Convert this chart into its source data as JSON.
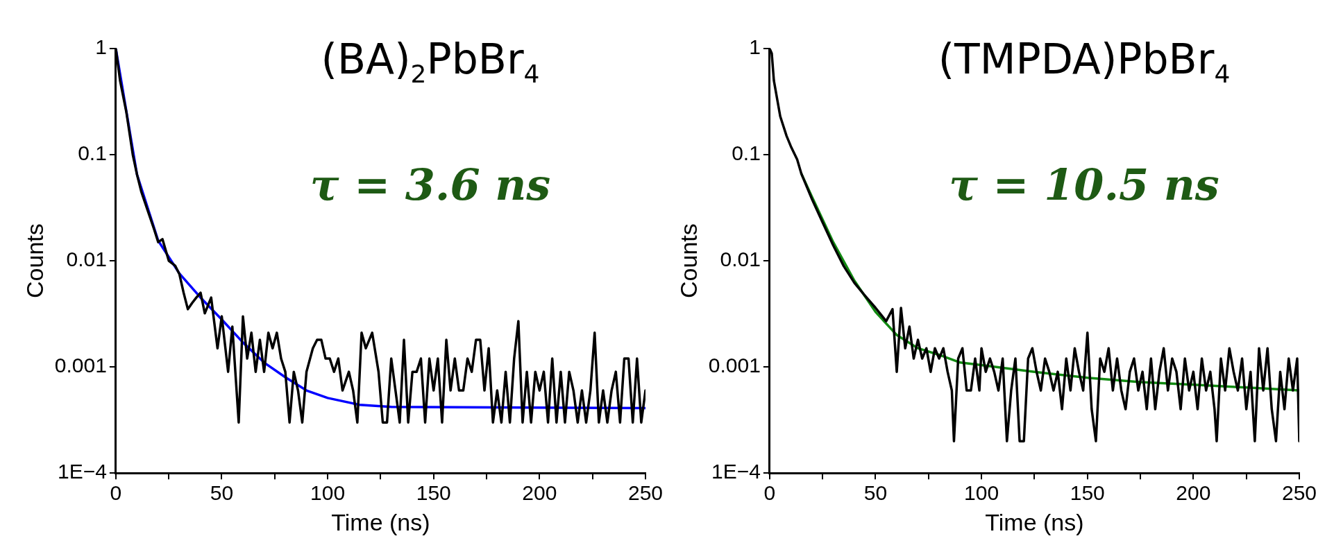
{
  "chart_data": [
    {
      "type": "line",
      "xlabel": "Time (ns)",
      "ylabel": "Counts",
      "log": "y",
      "grid": false,
      "legend": false,
      "marker": "none",
      "line_style": "solid",
      "annotations": [
        "(BA)$_{2}$PbBr$_{4}$",
        "τ = 3.6 ns"
      ],
      "xlim": [
        0,
        250
      ],
      "xticks": [
        0,
        {
          "value": 25,
          "label": null
        },
        50,
        {
          "value": 75,
          "label": null
        },
        100,
        {
          "value": 125,
          "label": null
        },
        150,
        {
          "value": 175,
          "label": null
        },
        200,
        {
          "value": 225,
          "label": null
        },
        250
      ],
      "ylim": [
        0.0001,
        1
      ],
      "yticks": [
        {
          "value": 0.0001,
          "label": "1E−4"
        },
        0.001,
        0.01,
        0.1,
        1
      ],
      "series": [
        {
          "type": "line",
          "color": "#000000",
          "x": [
            0,
            2,
            5,
            8,
            10,
            12,
            15,
            18,
            20,
            22,
            25,
            28,
            30,
            32,
            34,
            36,
            38,
            40,
            42,
            45,
            48,
            50,
            53,
            55,
            58,
            60,
            62,
            64,
            66,
            68,
            70,
            72,
            74,
            76,
            78,
            80,
            82,
            84,
            86,
            88,
            90,
            93,
            95,
            97,
            99,
            101,
            103,
            105,
            107,
            110,
            112,
            114,
            116,
            118,
            121,
            124,
            126,
            128,
            130,
            132,
            134,
            136,
            138,
            140,
            142,
            144,
            146,
            148,
            150,
            152,
            154,
            156,
            158,
            160,
            162,
            164,
            166,
            168,
            170,
            172,
            174,
            176,
            178,
            180,
            182,
            184,
            186,
            188,
            190,
            192,
            194,
            196,
            198,
            200,
            202,
            204,
            206,
            208,
            210,
            212,
            214,
            216,
            218,
            220,
            222,
            224,
            226,
            228,
            230,
            232,
            234,
            236,
            238,
            240,
            242,
            244,
            246,
            248,
            250
          ],
          "values": [
            1,
            0.5,
            0.25,
            0.1,
            0.065,
            0.045,
            0.03,
            0.02,
            0.015,
            0.016,
            0.01,
            0.009,
            0.0075,
            0.005,
            0.0035,
            0.004,
            0.0045,
            0.005,
            0.0032,
            0.0045,
            0.0015,
            0.003,
            0.0009,
            0.0024,
            0.0003,
            0.003,
            0.0012,
            0.0021,
            0.0009,
            0.0018,
            0.0009,
            0.0021,
            0.0015,
            0.0021,
            0.0012,
            0.0009,
            0.0003,
            0.0009,
            0.0006,
            0.0003,
            0.0009,
            0.0015,
            0.0018,
            0.0018,
            0.0012,
            0.0012,
            0.0009,
            0.0012,
            0.0006,
            0.0009,
            0.0006,
            0.0003,
            0.0021,
            0.0015,
            0.0021,
            0.0009,
            0.0003,
            0.0003,
            0.0012,
            0.0006,
            0.0003,
            0.0018,
            0.0003,
            0.0009,
            0.0009,
            0.0012,
            0.0003,
            0.0012,
            0.0006,
            0.0012,
            0.0003,
            0.0018,
            0.0006,
            0.0012,
            0.0006,
            0.0006,
            0.0012,
            0.0009,
            0.0018,
            0.0018,
            0.0006,
            0.0015,
            0.0003,
            0.0006,
            0.0003,
            0.0009,
            0.0003,
            0.0012,
            0.0027,
            0.0003,
            0.0009,
            0.0003,
            0.0009,
            0.0006,
            0.0009,
            0.0003,
            0.0012,
            0.0003,
            0.0009,
            0.0003,
            0.0009,
            0.0006,
            0.0003,
            0.0006,
            0.0003,
            0.0006,
            0.0021,
            0.0003,
            0.0006,
            0.0003,
            0.0006,
            0.0009,
            0.0003,
            0.0012,
            0.0012,
            0.0003,
            0.0012,
            0.0003,
            0.0006
          ]
        },
        {
          "type": "line",
          "color": "#0000ff",
          "x": [
            0,
            10,
            20,
            30,
            40,
            50,
            60,
            70,
            80,
            90,
            100,
            115,
            130,
            250
          ],
          "values": [
            1,
            0.065,
            0.0155,
            0.0076,
            0.0045,
            0.0028,
            0.0017,
            0.0011,
            0.0008,
            0.0006,
            0.00051,
            0.00044,
            0.00042,
            0.00041
          ]
        }
      ]
    },
    {
      "type": "line",
      "xlabel": "Time (ns)",
      "ylabel": "Counts",
      "log": "y",
      "grid": false,
      "legend": false,
      "marker": "none",
      "line_style": "solid",
      "annotations": [
        "(TMPDA)PbBr$_{4}$",
        "τ = 10.5 ns"
      ],
      "xlim": [
        0,
        250
      ],
      "xticks": [
        0,
        {
          "value": 25,
          "label": null
        },
        50,
        {
          "value": 75,
          "label": null
        },
        100,
        {
          "value": 125,
          "label": null
        },
        150,
        {
          "value": 175,
          "label": null
        },
        200,
        {
          "value": 225,
          "label": null
        },
        250
      ],
      "ylim": [
        0.0001,
        1
      ],
      "yticks": [
        {
          "value": 0.0001,
          "label": "1E−4"
        },
        0.001,
        0.01,
        0.1,
        1
      ],
      "series": [
        {
          "type": "line",
          "color": "#000000",
          "x": [
            0,
            1,
            2,
            5,
            8,
            10,
            13,
            15,
            20,
            25,
            30,
            35,
            40,
            45,
            50,
            55,
            58,
            60,
            62,
            64,
            66,
            68,
            70,
            72,
            74,
            76,
            78,
            80,
            82,
            84,
            86,
            87,
            89,
            91,
            93,
            95,
            97,
            99,
            100,
            102,
            104,
            106,
            108,
            110,
            112,
            114,
            116,
            118,
            120,
            122,
            124,
            126,
            128,
            130,
            132,
            134,
            136,
            138,
            140,
            142,
            144,
            146,
            148,
            150,
            152,
            154,
            156,
            158,
            160,
            162,
            164,
            166,
            168,
            170,
            172,
            174,
            176,
            178,
            180,
            182,
            184,
            186,
            188,
            190,
            192,
            194,
            196,
            198,
            200,
            202,
            204,
            206,
            208,
            210,
            211,
            213,
            215,
            217,
            219,
            221,
            223,
            225,
            227,
            229,
            231,
            233,
            235,
            237,
            239,
            241,
            243,
            245,
            247,
            249,
            250
          ],
          "values": [
            1,
            0.9,
            0.5,
            0.23,
            0.15,
            0.12,
            0.09,
            0.066,
            0.038,
            0.023,
            0.014,
            0.0089,
            0.0062,
            0.0047,
            0.0036,
            0.0027,
            0.0035,
            0.0009,
            0.0036,
            0.0015,
            0.0024,
            0.0012,
            0.0018,
            0.0012,
            0.0015,
            0.0009,
            0.0015,
            0.0012,
            0.0015,
            0.0009,
            0.0006,
            0.0002,
            0.0012,
            0.0015,
            0.0006,
            0.0006,
            0.0012,
            0.0006,
            0.0015,
            0.0009,
            0.0012,
            0.0009,
            0.0006,
            0.0012,
            0.0002,
            0.0006,
            0.0012,
            0.0002,
            0.0002,
            0.0012,
            0.0015,
            0.0009,
            0.0006,
            0.0012,
            0.0009,
            0.0006,
            0.0009,
            0.0004,
            0.0012,
            0.0006,
            0.0015,
            0.0009,
            0.0006,
            0.0021,
            0.0004,
            0.0002,
            0.0012,
            0.0009,
            0.0015,
            0.0006,
            0.0012,
            0.0006,
            0.0004,
            0.0009,
            0.0012,
            0.0006,
            0.0009,
            0.0004,
            0.0012,
            0.0004,
            0.0009,
            0.0015,
            0.0006,
            0.0012,
            0.0009,
            0.0004,
            0.0012,
            0.0006,
            0.0009,
            0.0004,
            0.0012,
            0.0006,
            0.0009,
            0.0004,
            0.0002,
            0.0012,
            0.0006,
            0.0015,
            0.0009,
            0.0006,
            0.0012,
            0.0004,
            0.0009,
            0.0002,
            0.0015,
            0.0006,
            0.0015,
            0.0004,
            0.0002,
            0.0009,
            0.0004,
            0.0012,
            0.0006,
            0.0012,
            0.0002
          ]
        },
        {
          "type": "line",
          "color": "#128a12",
          "x": [
            15,
            20,
            30,
            40,
            50,
            60,
            70,
            80,
            90,
            100,
            125,
            150,
            175,
            200,
            225,
            250
          ],
          "values": [
            0.066,
            0.04,
            0.015,
            0.0065,
            0.0033,
            0.002,
            0.0015,
            0.0013,
            0.0011,
            0.00104,
            0.0009,
            0.00079,
            0.00072,
            0.00068,
            0.00064,
            0.0006
          ]
        }
      ]
    }
  ]
}
